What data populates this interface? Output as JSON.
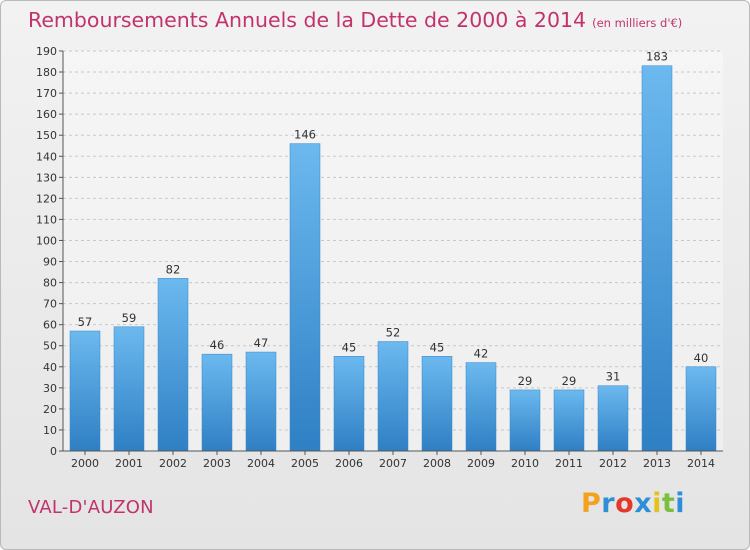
{
  "title": "Remboursements Annuels de la Dette de 2000 à 2014",
  "subtitle": "(en milliers d'€)",
  "commune": "VAL-D'AUZON",
  "logo": {
    "letters": [
      "P",
      "r",
      "o",
      "x",
      "i",
      "t",
      "i"
    ],
    "colors": [
      "#f2a21c",
      "#2e8ed8",
      "#e5372b",
      "#2e8ed8",
      "#e4c21c",
      "#7bbf3f",
      "#2e8ed8"
    ]
  },
  "colors": {
    "bar": "#4a9fe0",
    "bar_light": "#6cb9ef",
    "bar_dark": "#2f7fc4",
    "title": "#c2336d"
  },
  "chart_data": {
    "type": "bar",
    "categories": [
      "2000",
      "2001",
      "2002",
      "2003",
      "2004",
      "2005",
      "2006",
      "2007",
      "2008",
      "2009",
      "2010",
      "2011",
      "2012",
      "2013",
      "2014"
    ],
    "values": [
      57,
      59,
      82,
      46,
      47,
      146,
      45,
      52,
      45,
      42,
      29,
      29,
      31,
      183,
      40
    ],
    "ylim": [
      0,
      190
    ],
    "yticks": [
      0,
      10,
      20,
      30,
      40,
      50,
      60,
      70,
      80,
      90,
      100,
      110,
      120,
      130,
      140,
      150,
      160,
      170,
      180,
      190
    ],
    "grid": true,
    "data_labels": true
  }
}
